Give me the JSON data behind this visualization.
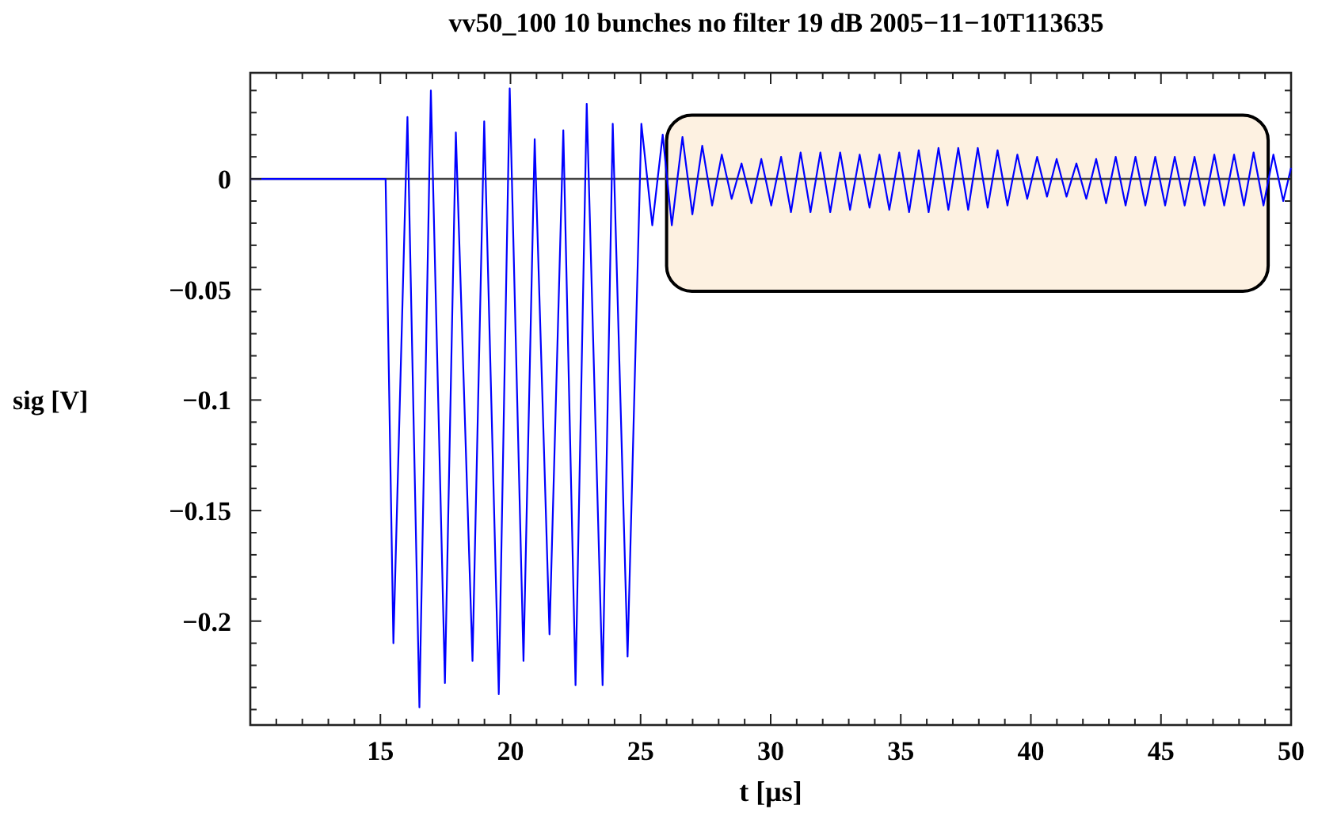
{
  "chart_data": {
    "type": "line",
    "title": "vv50_100 10 bunches no filter 19 dB  2005−11−10T113635",
    "xlabel": "t [μs]",
    "ylabel": "sig [V]",
    "xlim": [
      10,
      50
    ],
    "ylim": [
      -0.247,
      0.048
    ],
    "xticks": [
      {
        "value": 10,
        "label": null
      },
      {
        "value": 11,
        "label": null
      },
      {
        "value": 12,
        "label": null
      },
      {
        "value": 13,
        "label": null
      },
      {
        "value": 14,
        "label": null
      },
      15,
      {
        "value": 16,
        "label": null
      },
      {
        "value": 17,
        "label": null
      },
      {
        "value": 18,
        "label": null
      },
      {
        "value": 19,
        "label": null
      },
      20,
      {
        "value": 21,
        "label": null
      },
      {
        "value": 22,
        "label": null
      },
      {
        "value": 23,
        "label": null
      },
      {
        "value": 24,
        "label": null
      },
      25,
      {
        "value": 26,
        "label": null
      },
      {
        "value": 27,
        "label": null
      },
      {
        "value": 28,
        "label": null
      },
      {
        "value": 29,
        "label": null
      },
      30,
      {
        "value": 31,
        "label": null
      },
      {
        "value": 32,
        "label": null
      },
      {
        "value": 33,
        "label": null
      },
      {
        "value": 34,
        "label": null
      },
      35,
      {
        "value": 36,
        "label": null
      },
      {
        "value": 37,
        "label": null
      },
      {
        "value": 38,
        "label": null
      },
      {
        "value": 39,
        "label": null
      },
      40,
      {
        "value": 41,
        "label": null
      },
      {
        "value": 42,
        "label": null
      },
      {
        "value": 43,
        "label": null
      },
      {
        "value": 44,
        "label": null
      },
      45,
      {
        "value": 46,
        "label": null
      },
      {
        "value": 47,
        "label": null
      },
      {
        "value": 48,
        "label": null
      },
      {
        "value": 49,
        "label": null
      },
      50
    ],
    "yticks": [
      {
        "value": 0.04,
        "label": null
      },
      {
        "value": 0.03,
        "label": null
      },
      {
        "value": 0.02,
        "label": null
      },
      {
        "value": 0.01,
        "label": null
      },
      0,
      {
        "value": -0.01,
        "label": null
      },
      {
        "value": -0.02,
        "label": null
      },
      {
        "value": -0.03,
        "label": null
      },
      {
        "value": -0.04,
        "label": null
      },
      {
        "value": -0.05,
        "label": "−0.05"
      },
      {
        "value": -0.06,
        "label": null
      },
      {
        "value": -0.07,
        "label": null
      },
      {
        "value": -0.08,
        "label": null
      },
      {
        "value": -0.09,
        "label": null
      },
      {
        "value": -0.1,
        "label": "−0.1"
      },
      {
        "value": -0.11,
        "label": null
      },
      {
        "value": -0.12,
        "label": null
      },
      {
        "value": -0.13,
        "label": null
      },
      {
        "value": -0.14,
        "label": null
      },
      {
        "value": -0.15,
        "label": "−0.15"
      },
      {
        "value": -0.16,
        "label": null
      },
      {
        "value": -0.17,
        "label": null
      },
      {
        "value": -0.18,
        "label": null
      },
      {
        "value": -0.19,
        "label": null
      },
      {
        "value": -0.2,
        "label": "−0.2"
      },
      {
        "value": -0.21,
        "label": null
      },
      {
        "value": -0.22,
        "label": null
      },
      {
        "value": -0.23,
        "label": null
      },
      {
        "value": -0.24,
        "label": null
      }
    ],
    "ref_lines": [
      {
        "axis": "y",
        "value": 0,
        "color": "#444444"
      }
    ],
    "marker": "none",
    "line_style": "solid",
    "series": [
      {
        "color": "#0000ff",
        "x": [
          10,
          15.2,
          15.5,
          16.04,
          16.5,
          16.94,
          17.48,
          17.9,
          18.54,
          18.99,
          19.55,
          19.97,
          20.5,
          20.93,
          21.5,
          22.03,
          22.5,
          22.93,
          23.54,
          23.93,
          24.5,
          25.03,
          25.45,
          25.85,
          26.2,
          26.61,
          26.99,
          27.37,
          27.75,
          28.12,
          28.5,
          28.88,
          29.26,
          29.64,
          30.02,
          30.4,
          30.78,
          31.15,
          31.53,
          31.91,
          32.29,
          32.67,
          33.05,
          33.42,
          33.8,
          34.18,
          34.56,
          34.94,
          35.32,
          35.69,
          36.07,
          36.45,
          36.83,
          37.21,
          37.59,
          37.96,
          38.34,
          38.72,
          39.1,
          39.48,
          39.86,
          40.24,
          40.62,
          40.99,
          41.37,
          41.75,
          42.13,
          42.51,
          42.89,
          43.26,
          43.64,
          44.02,
          44.4,
          44.78,
          45.16,
          45.53,
          45.91,
          46.29,
          46.67,
          47.05,
          47.43,
          47.81,
          48.19,
          48.56,
          48.94,
          49.32,
          49.7,
          50
        ],
        "values": [
          0,
          0,
          -0.21,
          0.028,
          -0.239,
          0.04,
          -0.228,
          0.021,
          -0.218,
          0.026,
          -0.233,
          0.041,
          -0.218,
          0.018,
          -0.206,
          0.022,
          -0.229,
          0.034,
          -0.229,
          0.025,
          -0.216,
          0.025,
          -0.021,
          0.02,
          -0.021,
          0.019,
          -0.016,
          0.015,
          -0.012,
          0.011,
          -0.009,
          0.007,
          -0.011,
          0.009,
          -0.012,
          0.01,
          -0.015,
          0.012,
          -0.015,
          0.012,
          -0.015,
          0.012,
          -0.014,
          0.011,
          -0.013,
          0.011,
          -0.014,
          0.012,
          -0.015,
          0.013,
          -0.015,
          0.014,
          -0.014,
          0.014,
          -0.014,
          0.014,
          -0.013,
          0.013,
          -0.012,
          0.011,
          -0.009,
          0.01,
          -0.008,
          0.009,
          -0.008,
          0.007,
          -0.009,
          0.009,
          -0.011,
          0.01,
          -0.012,
          0.01,
          -0.012,
          0.01,
          -0.012,
          0.01,
          -0.012,
          0.01,
          -0.012,
          0.011,
          -0.012,
          0.011,
          -0.012,
          0.012,
          -0.012,
          0.011,
          -0.01,
          0.005
        ]
      }
    ]
  }
}
